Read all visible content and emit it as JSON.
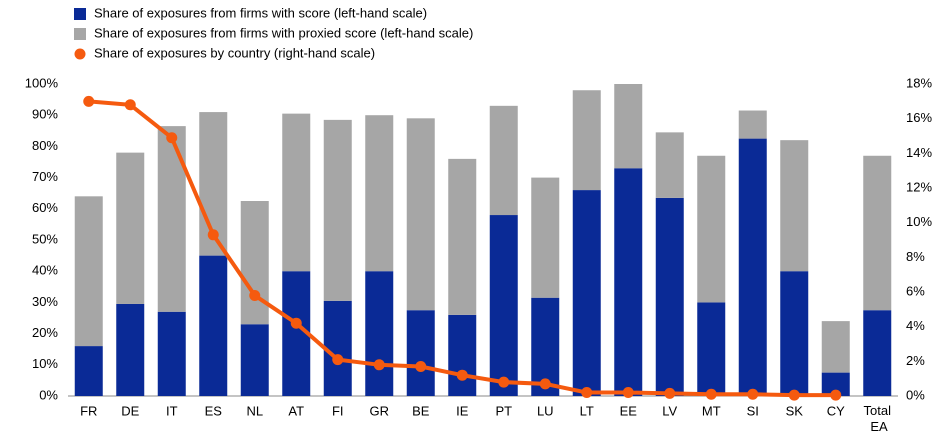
{
  "chart_data": {
    "type": "bar-line",
    "categories": [
      "FR",
      "DE",
      "IT",
      "ES",
      "NL",
      "AT",
      "FI",
      "GR",
      "BE",
      "IE",
      "PT",
      "LU",
      "LT",
      "EE",
      "LV",
      "MT",
      "SI",
      "SK",
      "CY",
      "Total EA"
    ],
    "series": [
      {
        "name": "Share of exposures from firms with score (left-hand scale)",
        "color": "#0a2a96",
        "type": "bar",
        "values": [
          16,
          29.5,
          27,
          45,
          23,
          40,
          30.5,
          40,
          27.5,
          26,
          58,
          31.5,
          66,
          73,
          63.5,
          30,
          82.5,
          40,
          7.5,
          27.5
        ]
      },
      {
        "name": "Share of exposures from firms with proxied score (left-hand scale)",
        "color": "#a6a6a6",
        "type": "bar",
        "values": [
          48,
          48.5,
          59.5,
          46,
          39.5,
          50.5,
          58,
          50,
          61.5,
          50,
          35,
          38.5,
          32,
          27,
          21,
          47,
          9,
          42,
          16.5,
          49.5
        ]
      },
      {
        "name": "Share of exposures by country (right-hand scale)",
        "color": "#f55a0f",
        "type": "line",
        "axis": "y2",
        "values": [
          17.0,
          16.8,
          14.9,
          9.3,
          5.8,
          4.2,
          2.1,
          1.8,
          1.7,
          1.2,
          0.8,
          0.7,
          0.2,
          0.2,
          0.15,
          0.1,
          0.1,
          0.05,
          0.05,
          null
        ]
      }
    ],
    "ylim": [
      0,
      100
    ],
    "yticks": [
      {
        "value": 0,
        "label": "0%"
      },
      {
        "value": 10,
        "label": "10%"
      },
      {
        "value": 20,
        "label": "20%"
      },
      {
        "value": 30,
        "label": "30%"
      },
      {
        "value": 40,
        "label": "40%"
      },
      {
        "value": 50,
        "label": "50%"
      },
      {
        "value": 60,
        "label": "60%"
      },
      {
        "value": 70,
        "label": "70%"
      },
      {
        "value": 80,
        "label": "80%"
      },
      {
        "value": 90,
        "label": "90%"
      },
      {
        "value": 100,
        "label": "100%"
      }
    ],
    "y2lim": [
      0,
      18
    ],
    "y2ticks": [
      {
        "value": 0,
        "label": "0%"
      },
      {
        "value": 2,
        "label": "2%"
      },
      {
        "value": 4,
        "label": "4%"
      },
      {
        "value": 6,
        "label": "6%"
      },
      {
        "value": 8,
        "label": "8%"
      },
      {
        "value": 10,
        "label": "10%"
      },
      {
        "value": 12,
        "label": "12%"
      },
      {
        "value": 14,
        "label": "14%"
      },
      {
        "value": 16,
        "label": "16%"
      },
      {
        "value": 18,
        "label": "18%"
      }
    ],
    "grid": false
  }
}
